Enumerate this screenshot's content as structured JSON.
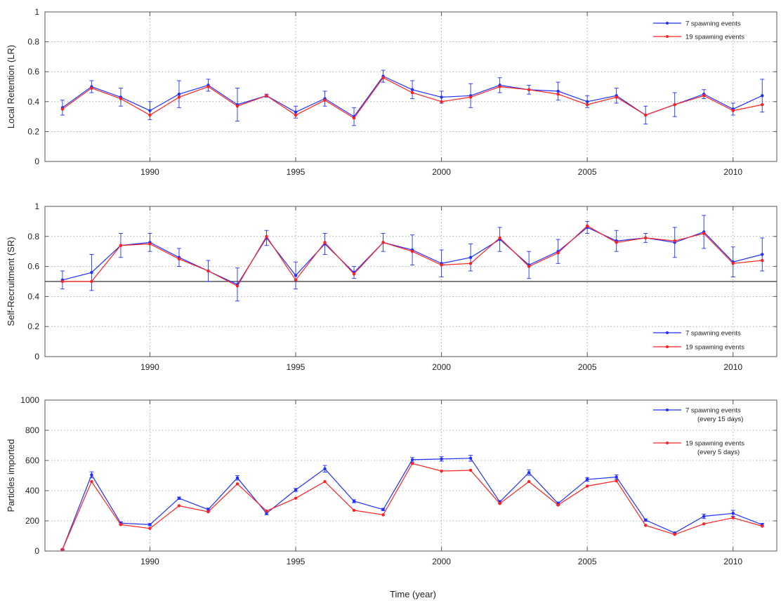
{
  "figure": {
    "xlabel": "Time (year)"
  },
  "colors": {
    "series_7": "#1f2fff",
    "series_19": "#ff2020",
    "axis": "#555555",
    "grid": "#9a9a9a",
    "reference_line": "#333333"
  },
  "chart_data": [
    {
      "type": "line",
      "ylabel": "Local Retention (LR)",
      "xlim": [
        1986.4,
        2011.5
      ],
      "ylim": [
        0,
        1
      ],
      "xticks": [
        1990,
        1995,
        2000,
        2005,
        2010
      ],
      "yticks": [
        0,
        0.2,
        0.4,
        0.6,
        0.8,
        1
      ],
      "ytick_labels": [
        "0",
        "0.2",
        "0.4",
        "0.6",
        "0.8",
        "1"
      ],
      "grid": true,
      "legend_position": "top-right",
      "x": [
        1987,
        1988,
        1989,
        1990,
        1991,
        1992,
        1993,
        1994,
        1995,
        1996,
        1997,
        1998,
        1999,
        2000,
        2001,
        2002,
        2003,
        2004,
        2005,
        2006,
        2007,
        2008,
        2009,
        2010,
        2011
      ],
      "series": [
        {
          "name": "7 spawning events",
          "color": "#1f2fff",
          "values": [
            0.36,
            0.5,
            0.43,
            0.34,
            0.45,
            0.51,
            0.38,
            0.44,
            0.33,
            0.42,
            0.3,
            0.57,
            0.48,
            0.43,
            0.44,
            0.51,
            0.48,
            0.47,
            0.4,
            0.44,
            0.31,
            0.38,
            0.45,
            0.35,
            0.44
          ],
          "errors": [
            0.05,
            0.04,
            0.06,
            0.06,
            0.09,
            0.04,
            0.11,
            0.01,
            0.04,
            0.05,
            0.06,
            0.04,
            0.06,
            0.04,
            0.08,
            0.05,
            0.03,
            0.06,
            0.04,
            0.05,
            0.06,
            0.08,
            0.03,
            0.04,
            0.11
          ]
        },
        {
          "name": "19 spawning events",
          "color": "#ff2020",
          "values": [
            0.35,
            0.49,
            0.42,
            0.31,
            0.43,
            0.5,
            0.37,
            0.44,
            0.31,
            0.41,
            0.29,
            0.56,
            0.46,
            0.4,
            0.43,
            0.5,
            0.48,
            0.45,
            0.38,
            0.43,
            0.31,
            0.38,
            0.44,
            0.34,
            0.38
          ]
        }
      ]
    },
    {
      "type": "line",
      "ylabel": "Self-Recruitment (SR)",
      "xlim": [
        1986.4,
        2011.5
      ],
      "ylim": [
        0,
        1
      ],
      "xticks": [
        1990,
        1995,
        2000,
        2005,
        2010
      ],
      "yticks": [
        0,
        0.2,
        0.4,
        0.6,
        0.8,
        1
      ],
      "ytick_labels": [
        "0",
        "0.2",
        "0.4",
        "0.6",
        "0.8",
        "1"
      ],
      "reference_line": 0.5,
      "grid": true,
      "legend_position": "bottom-right",
      "x": [
        1987,
        1988,
        1989,
        1990,
        1991,
        1992,
        1993,
        1994,
        1995,
        1996,
        1997,
        1998,
        1999,
        2000,
        2001,
        2002,
        2003,
        2004,
        2005,
        2006,
        2007,
        2008,
        2009,
        2010,
        2011
      ],
      "series": [
        {
          "name": "7 spawning events",
          "color": "#1f2fff",
          "values": [
            0.51,
            0.56,
            0.74,
            0.76,
            0.66,
            0.57,
            0.48,
            0.79,
            0.54,
            0.75,
            0.56,
            0.76,
            0.71,
            0.62,
            0.66,
            0.78,
            0.61,
            0.7,
            0.86,
            0.77,
            0.79,
            0.76,
            0.83,
            0.63,
            0.68
          ],
          "errors": [
            0.06,
            0.12,
            0.08,
            0.06,
            0.06,
            0.07,
            0.11,
            0.05,
            0.09,
            0.07,
            0.04,
            0.06,
            0.1,
            0.09,
            0.09,
            0.08,
            0.09,
            0.08,
            0.04,
            0.07,
            0.03,
            0.1,
            0.11,
            0.1,
            0.11
          ]
        },
        {
          "name": "19 spawning events",
          "color": "#ff2020",
          "values": [
            0.5,
            0.5,
            0.74,
            0.75,
            0.65,
            0.57,
            0.47,
            0.8,
            0.51,
            0.76,
            0.55,
            0.76,
            0.7,
            0.61,
            0.62,
            0.79,
            0.6,
            0.69,
            0.87,
            0.76,
            0.79,
            0.77,
            0.82,
            0.62,
            0.64
          ]
        }
      ]
    },
    {
      "type": "line",
      "ylabel": "Particles imported",
      "xlim": [
        1986.4,
        2011.5
      ],
      "ylim": [
        0,
        1000
      ],
      "xticks": [
        1990,
        1995,
        2000,
        2005,
        2010
      ],
      "yticks": [
        0,
        200,
        400,
        600,
        800,
        1000
      ],
      "ytick_labels": [
        "0",
        "200",
        "400",
        "600",
        "800",
        "1000"
      ],
      "grid": true,
      "legend_position": "top-right",
      "x": [
        1987,
        1988,
        1989,
        1990,
        1991,
        1992,
        1993,
        1994,
        1995,
        1996,
        1997,
        1998,
        1999,
        2000,
        2001,
        2002,
        2003,
        2004,
        2005,
        2006,
        2007,
        2008,
        2009,
        2010,
        2011
      ],
      "series": [
        {
          "name": "7 spawning events",
          "name_line2": "(every 15 days)",
          "color": "#1f2fff",
          "values": [
            10,
            505,
            185,
            175,
            350,
            275,
            485,
            250,
            405,
            545,
            330,
            275,
            605,
            610,
            615,
            325,
            520,
            315,
            475,
            490,
            205,
            120,
            230,
            250,
            175
          ],
          "errors": [
            3,
            20,
            8,
            8,
            8,
            10,
            15,
            10,
            10,
            22,
            10,
            8,
            15,
            15,
            20,
            10,
            18,
            10,
            12,
            15,
            8,
            5,
            15,
            20,
            8
          ]
        },
        {
          "name": "19 spawning events",
          "name_line2": "(every 5 days)",
          "color": "#ff2020",
          "values": [
            10,
            460,
            175,
            150,
            300,
            260,
            445,
            265,
            350,
            460,
            270,
            240,
            580,
            530,
            535,
            315,
            460,
            305,
            430,
            465,
            170,
            110,
            180,
            220,
            165
          ]
        }
      ]
    }
  ]
}
